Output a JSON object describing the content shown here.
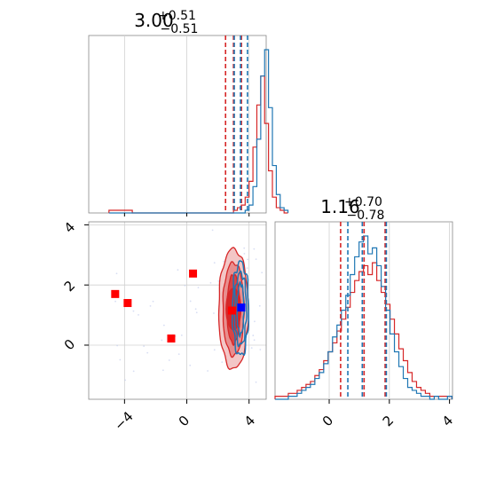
{
  "chart_data": [
    {
      "type": "histogram",
      "panel": "param1-marginal",
      "title": {
        "value": "3.00",
        "plus": "+0.51",
        "minus": "−0.51"
      },
      "xlim": [
        -6.3,
        5.1
      ],
      "bins_x_start": -5.0,
      "bin_width": 0.25,
      "series": [
        {
          "color": "#d62728",
          "counts": [
            1,
            1,
            1,
            1,
            1,
            1,
            0,
            0,
            0,
            0,
            0,
            0,
            0,
            0,
            0,
            0,
            0,
            0,
            0,
            0,
            0,
            0,
            0,
            0,
            0,
            0,
            0,
            0,
            0,
            0,
            0,
            0,
            1,
            2,
            3,
            6,
            12,
            25,
            41,
            52,
            34,
            16,
            6,
            2,
            1,
            0
          ]
        },
        {
          "color": "#1f77b4",
          "counts": [
            0,
            0,
            0,
            0,
            0,
            0,
            0,
            0,
            0,
            0,
            0,
            0,
            0,
            0,
            0,
            0,
            0,
            0,
            0,
            0,
            0,
            0,
            0,
            0,
            0,
            0,
            0,
            0,
            0,
            0,
            0,
            0,
            0,
            0,
            0,
            1,
            3,
            10,
            28,
            52,
            62,
            40,
            18,
            7,
            2,
            1
          ]
        }
      ],
      "quantiles": [
        {
          "color": "#d62728",
          "values": [
            2.49,
            3.0,
            3.51
          ]
        },
        {
          "color": "#1f77b4",
          "values": [
            3.05,
            3.45,
            3.9
          ]
        }
      ]
    },
    {
      "type": "histogram",
      "panel": "param2-marginal",
      "title": {
        "value": "1.16",
        "plus": "+0.70",
        "minus": "−0.78"
      },
      "xlim": [
        -1.8,
        4.1
      ],
      "xticks": [
        "0",
        "2",
        "4"
      ],
      "bins_x_start": -1.8,
      "bin_width": 0.147,
      "series": [
        {
          "color": "#d62728",
          "counts": [
            1,
            1,
            1,
            2,
            2,
            3,
            4,
            5,
            6,
            8,
            10,
            13,
            16,
            19,
            23,
            27,
            31,
            36,
            40,
            43,
            45,
            42,
            46,
            40,
            36,
            32,
            27,
            22,
            17,
            13,
            9,
            6,
            4,
            3,
            2,
            1,
            1,
            1,
            1,
            1
          ]
        },
        {
          "color": "#1f77b4",
          "counts": [
            0,
            0,
            0,
            1,
            1,
            2,
            3,
            4,
            5,
            7,
            9,
            12,
            16,
            21,
            25,
            30,
            35,
            42,
            48,
            53,
            55,
            49,
            51,
            45,
            38,
            30,
            22,
            16,
            11,
            7,
            4,
            3,
            2,
            1,
            1,
            0,
            1,
            0,
            0,
            1
          ]
        }
      ],
      "quantiles": [
        {
          "color": "#d62728",
          "values": [
            0.38,
            1.16,
            1.86
          ]
        },
        {
          "color": "#1f77b4",
          "values": [
            0.62,
            1.1,
            1.9
          ]
        }
      ]
    },
    {
      "type": "contour-scatter",
      "panel": "joint",
      "xlim": [
        -6.3,
        5.1
      ],
      "ylim": [
        -1.8,
        4.1
      ],
      "xticks": [
        "−4",
        "0",
        "4"
      ],
      "yticks": [
        "0",
        "2",
        "4"
      ],
      "red_markers": [
        [
          -4.6,
          1.7
        ],
        [
          -3.8,
          1.4
        ],
        [
          -1.0,
          0.22
        ],
        [
          0.4,
          2.38
        ],
        [
          2.9,
          1.15
        ]
      ],
      "blue_markers": [
        [
          3.5,
          1.25
        ]
      ],
      "contours": [
        {
          "color": "#d62728",
          "center": [
            3.0,
            1.2
          ],
          "levels": [
            [
              0.42,
              1.15
            ],
            [
              0.68,
              1.55
            ],
            [
              0.95,
              2.0
            ]
          ]
        },
        {
          "color": "#1f77b4",
          "center": [
            3.45,
            1.2
          ],
          "levels": [
            [
              0.22,
              0.85
            ],
            [
              0.38,
              1.2
            ],
            [
              0.52,
              1.55
            ]
          ]
        }
      ]
    }
  ]
}
